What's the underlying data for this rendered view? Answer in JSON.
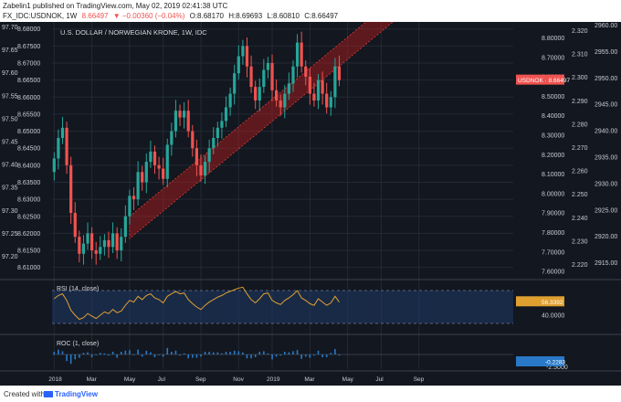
{
  "header": {
    "line1": "Zabelin1 published on TradingView.com, May 02, 2019 02:41:38 UTC",
    "symbol": "FX_IDC:USDNOK, 1W",
    "ohlc": [
      "8.66497",
      "▼ −0.00360 (−0.04%)",
      "O:8.68170",
      "H:8.69693",
      "L:8.60810",
      "C:8.66497"
    ]
  },
  "footer": {
    "created": "Created with",
    "brand": "TradingView"
  },
  "colors": {
    "up": "#26a69a",
    "down": "#ef5350",
    "channel": "#b71c1c",
    "rsi_line": "#e0a030",
    "roc_bar": "#2979c8",
    "bg": "#13171f",
    "grid": "#232a36",
    "text": "#c9ccd4"
  },
  "chart_data": {
    "type": "candlestick",
    "title": "U.S. DOLLAR / NORWEGIAN KRONE, 1W, IDC",
    "x_tick_labels": [
      "2018",
      "Mar",
      "May",
      "Jul",
      "Sep",
      "Nov",
      "2019",
      "Mar",
      "May",
      "Jul",
      "Sep"
    ],
    "price_axis_labels": [
      "8.68000",
      "8.67500",
      "8.67000",
      "8.66500",
      "8.66000",
      "8.65500",
      "8.65000",
      "8.64500",
      "8.64000",
      "8.63500",
      "8.63000",
      "8.62500",
      "8.62000",
      "8.61500",
      "8.61000"
    ],
    "left_axis_labels": [
      "97.70",
      "97.65",
      "97.60",
      "97.55",
      "97.50",
      "97.45",
      "97.40",
      "97.35",
      "97.30",
      "97.25",
      "97.20"
    ],
    "secondary_axis_labels": [
      "8.80000",
      "8.70000",
      "8.60000",
      "8.50000",
      "8.40000",
      "8.30000",
      "8.20000",
      "8.10000",
      "8.00000",
      "7.90000",
      "7.80000",
      "7.70000",
      "7.60000"
    ],
    "tertiary_axis_labels": [
      "2.320",
      "2.310",
      "2.300",
      "2.290",
      "2.280",
      "2.270",
      "2.260",
      "2.250",
      "2.240",
      "2.230",
      "2.220"
    ],
    "far_right_axis_labels": [
      "2960.00",
      "2955.00",
      "2950.00",
      "2945.00",
      "2940.00",
      "2935.00",
      "2930.00",
      "2925.00",
      "2920.00",
      "2915.00"
    ],
    "last_price_label": "USDNOK · 8.66497",
    "closes": [
      8.642,
      8.648,
      8.651,
      8.64,
      8.626,
      8.619,
      8.614,
      8.617,
      8.62,
      8.615,
      8.614,
      8.616,
      8.618,
      8.616,
      8.62,
      8.615,
      8.619,
      8.625,
      8.631,
      8.63,
      8.638,
      8.635,
      8.641,
      8.644,
      8.64,
      8.639,
      8.636,
      8.646,
      8.65,
      8.656,
      8.654,
      8.656,
      8.65,
      8.645,
      8.64,
      8.637,
      8.641,
      8.645,
      8.648,
      8.651,
      8.653,
      8.657,
      8.661,
      8.667,
      8.672,
      8.675,
      8.669,
      8.663,
      8.659,
      8.663,
      8.668,
      8.67,
      8.662,
      8.659,
      8.657,
      8.661,
      8.664,
      8.669,
      8.676,
      8.669,
      8.666,
      8.661,
      8.659,
      8.665,
      8.661,
      8.657,
      8.66,
      8.669,
      8.665
    ],
    "channel_price_at_first_week": 8.6035,
    "channel_price_at_week_80": 8.6845,
    "channel_width": 0.0065,
    "rsi": {
      "label": "RSI (14, close)",
      "current": "56.3392",
      "axis_labels": [
        "40.0000"
      ],
      "values": [
        60,
        64,
        66,
        58,
        46,
        40,
        35,
        37,
        42,
        39,
        36,
        40,
        44,
        42,
        47,
        43,
        45,
        52,
        58,
        56,
        63,
        59,
        64,
        66,
        61,
        59,
        55,
        63,
        66,
        69,
        66,
        67,
        59,
        54,
        50,
        47,
        52,
        56,
        59,
        62,
        64,
        67,
        69,
        71,
        73,
        74,
        66,
        59,
        55,
        60,
        66,
        67,
        58,
        55,
        53,
        58,
        61,
        65,
        70,
        61,
        58,
        54,
        52,
        60,
        56,
        52,
        55,
        63,
        56
      ]
    },
    "roc": {
      "label": "ROC (1, close)",
      "current": "-0.2283",
      "axis_labels": [
        "-2.5000"
      ],
      "values": [
        0.5,
        0.9,
        0.6,
        -1.2,
        -1.7,
        -0.9,
        -0.6,
        0.3,
        0.4,
        -0.5,
        -0.1,
        0.3,
        0.2,
        -0.2,
        0.5,
        -0.6,
        0.5,
        0.7,
        0.8,
        -0.1,
        0.9,
        -0.4,
        0.7,
        0.4,
        -0.5,
        -0.1,
        -0.4,
        1.2,
        0.5,
        0.7,
        -0.2,
        0.2,
        -0.7,
        -0.6,
        -0.6,
        -0.4,
        0.5,
        0.5,
        0.4,
        0.4,
        0.2,
        0.5,
        0.5,
        0.7,
        0.6,
        0.4,
        -0.7,
        -0.7,
        -0.5,
        0.5,
        0.6,
        0.2,
        -0.9,
        -0.4,
        -0.2,
        0.5,
        0.4,
        0.6,
        0.8,
        -0.8,
        -0.4,
        -0.6,
        -0.2,
        0.7,
        -0.5,
        -0.5,
        0.3,
        1.0,
        -0.2
      ]
    }
  }
}
